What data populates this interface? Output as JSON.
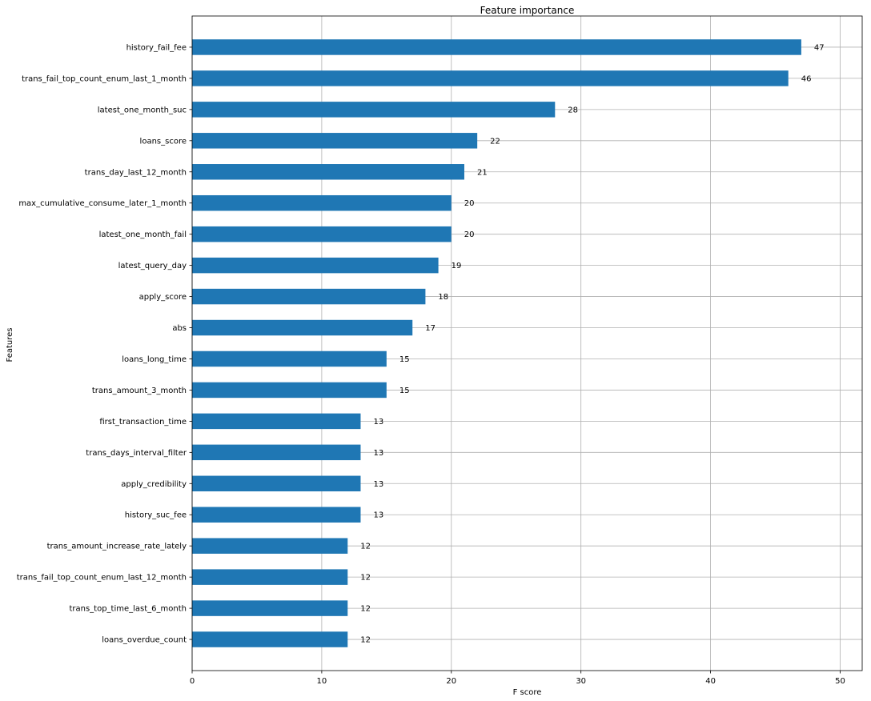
{
  "chart_data": {
    "type": "bar",
    "orientation": "horizontal",
    "title": "Feature importance",
    "xlabel": "F score",
    "ylabel": "Features",
    "xlim": [
      0,
      51.7
    ],
    "xticks": [
      0,
      10,
      20,
      30,
      40,
      50
    ],
    "grid": true,
    "bar_color": "#1f77b4",
    "categories": [
      "history_fail_fee",
      "trans_fail_top_count_enum_last_1_month",
      "latest_one_month_suc",
      "loans_score",
      "trans_day_last_12_month",
      "max_cumulative_consume_later_1_month",
      "latest_one_month_fail",
      "latest_query_day",
      "apply_score",
      "abs",
      "loans_long_time",
      "trans_amount_3_month",
      "first_transaction_time",
      "trans_days_interval_filter",
      "apply_credibility",
      "history_suc_fee",
      "trans_amount_increase_rate_lately",
      "trans_fail_top_count_enum_last_12_month",
      "trans_top_time_last_6_month",
      "loans_overdue_count"
    ],
    "values": [
      47,
      46,
      28,
      22,
      21,
      20,
      20,
      19,
      18,
      17,
      15,
      15,
      13,
      13,
      13,
      13,
      12,
      12,
      12,
      12
    ]
  }
}
